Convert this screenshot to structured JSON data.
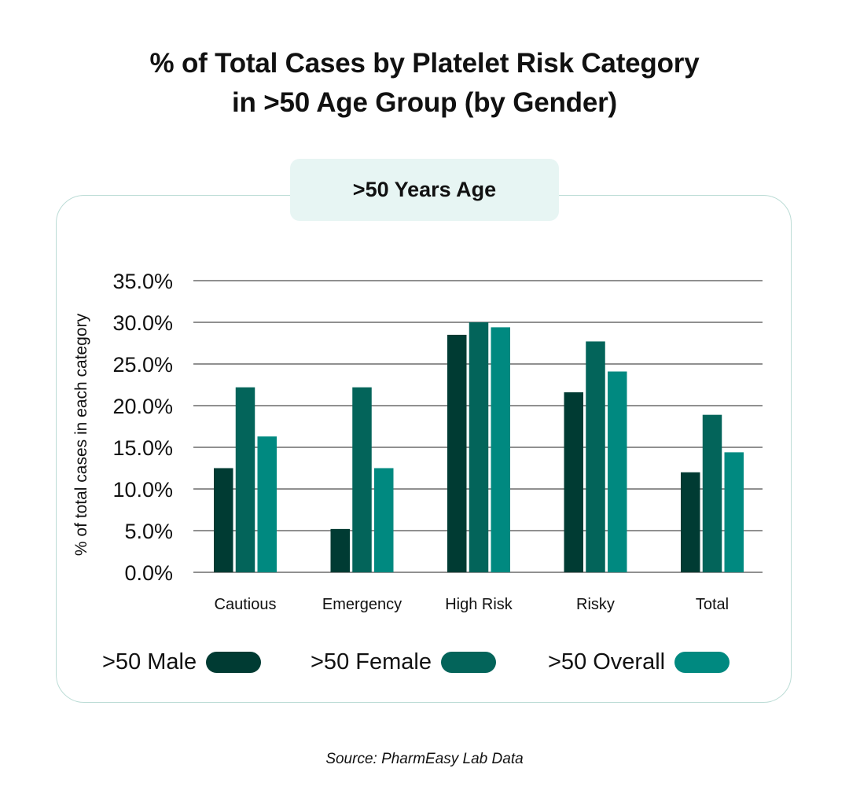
{
  "title_line1": "% of Total Cases by Platelet Risk Category",
  "title_line2": "in >50 Age Group (by Gender)",
  "source": "Source: PharmEasy Lab Data",
  "chart_data": {
    "type": "bar",
    "subtitle": ">50 Years Age",
    "ylabel": "% of total cases in each category",
    "xlabel": "",
    "categories": [
      "Cautious",
      "Emergency",
      "High Risk",
      "Risky",
      "Total"
    ],
    "series": [
      {
        "name": ">50 Male",
        "color": "#003b33",
        "values": [
          12.5,
          5.2,
          28.5,
          21.6,
          12.0
        ]
      },
      {
        "name": ">50 Female",
        "color": "#03645a",
        "values": [
          22.2,
          22.2,
          30.0,
          27.7,
          18.9
        ]
      },
      {
        "name": ">50 Overall",
        "color": "#008980",
        "values": [
          16.3,
          12.5,
          29.4,
          24.1,
          14.4
        ]
      }
    ],
    "ylim": [
      0,
      35
    ],
    "yticks": [
      "0.0%",
      "5.0%",
      "10.0%",
      "15.0%",
      "20.0%",
      "25.0%",
      "30.0%",
      "35.0%"
    ],
    "grid": true,
    "legend_position": "bottom"
  }
}
